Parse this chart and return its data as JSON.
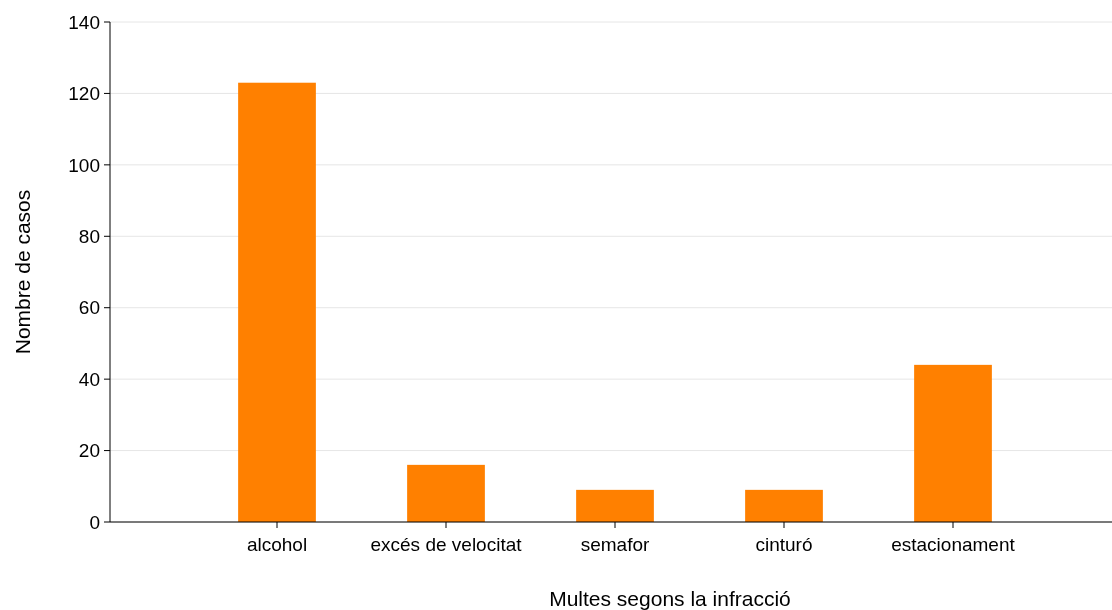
{
  "chart_data": {
    "type": "bar",
    "xlabel": "Multes segons la infracció",
    "ylabel": "Nombre de casos",
    "categories": [
      "alcohol",
      "excés de velocitat",
      "semafor",
      "cinturó",
      "estacionament"
    ],
    "values": [
      123,
      16,
      9,
      9,
      44
    ],
    "color": "#ff8000",
    "ylim": [
      0,
      140
    ],
    "yticks": [
      0,
      20,
      40,
      60,
      80,
      100,
      120,
      140
    ],
    "grid": "y"
  }
}
